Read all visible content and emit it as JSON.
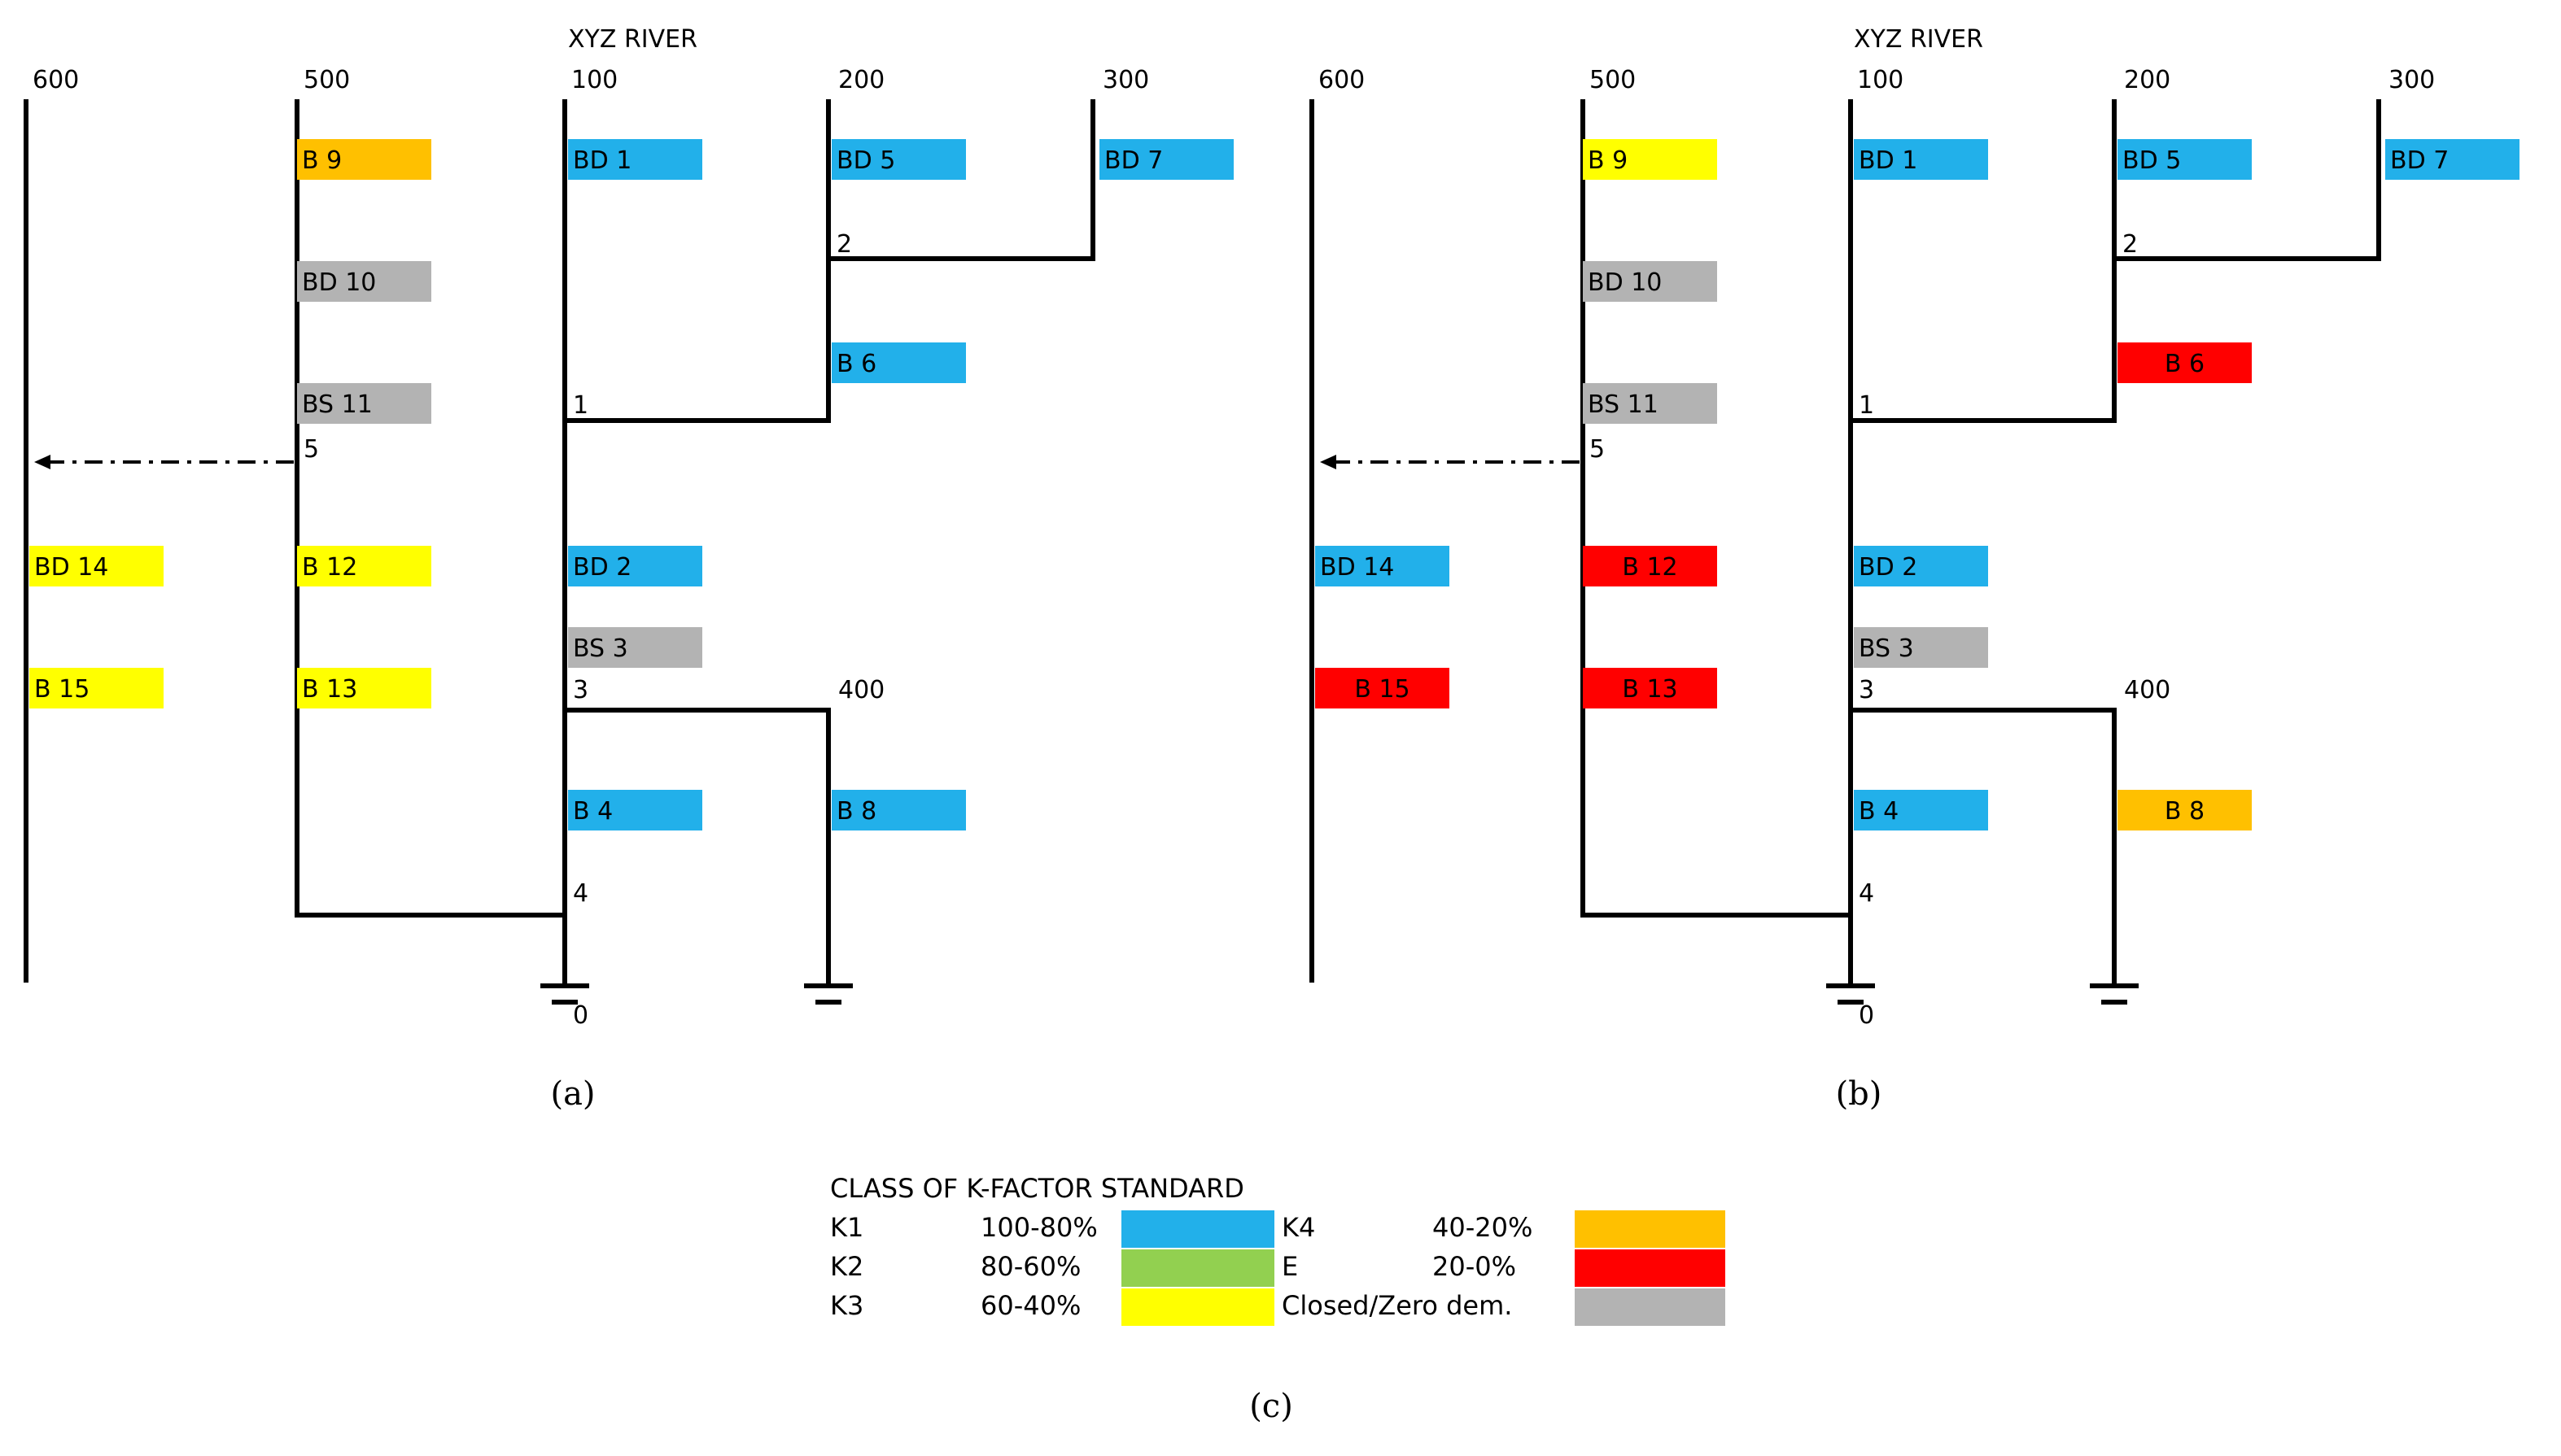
{
  "colors": {
    "K1": "#22b0ea",
    "K2": "#92d050",
    "K3": "#ffff00",
    "K4": "#ffc000",
    "E": "#ff0000",
    "closed": "#b3b3b3"
  },
  "river_label": "XYZ RIVER",
  "river_nums": [
    "600",
    "500",
    "100",
    "200",
    "300",
    "400"
  ],
  "junction_nums": [
    "2",
    "1",
    "5",
    "3",
    "4",
    "0"
  ],
  "panels": [
    {
      "caption": "(a)",
      "boxes": [
        {
          "label": "B 9",
          "class": "K4"
        },
        {
          "label": "BD 10",
          "class": "closed"
        },
        {
          "label": "BS 11",
          "class": "closed"
        },
        {
          "label": "B 12",
          "class": "K3"
        },
        {
          "label": "B 13",
          "class": "K3"
        },
        {
          "label": "BD 14",
          "class": "K3"
        },
        {
          "label": "B 15",
          "class": "K3"
        },
        {
          "label": "BD 1",
          "class": "K1"
        },
        {
          "label": "BD 2",
          "class": "K1"
        },
        {
          "label": "BS 3",
          "class": "closed"
        },
        {
          "label": "B 4",
          "class": "K1"
        },
        {
          "label": "BD 5",
          "class": "K1"
        },
        {
          "label": "B 6",
          "class": "K1"
        },
        {
          "label": "BD 7",
          "class": "K1"
        },
        {
          "label": "B 8",
          "class": "K1"
        }
      ]
    },
    {
      "caption": "(b)",
      "boxes": [
        {
          "label": "B 9",
          "class": "K3"
        },
        {
          "label": "BD 10",
          "class": "closed"
        },
        {
          "label": "BS 11",
          "class": "closed"
        },
        {
          "label": "B 12",
          "class": "E"
        },
        {
          "label": "B 13",
          "class": "E"
        },
        {
          "label": "BD 14",
          "class": "K1"
        },
        {
          "label": "B 15",
          "class": "E"
        },
        {
          "label": "BD 1",
          "class": "K1"
        },
        {
          "label": "BD 2",
          "class": "K1"
        },
        {
          "label": "BS 3",
          "class": "closed"
        },
        {
          "label": "B 4",
          "class": "K1"
        },
        {
          "label": "BD 5",
          "class": "K1"
        },
        {
          "label": "B 6",
          "class": "E"
        },
        {
          "label": "BD 7",
          "class": "K1"
        },
        {
          "label": "B 8",
          "class": "K4"
        }
      ]
    }
  ],
  "legend": {
    "title": "CLASS OF K-FACTOR STANDARD",
    "rows_left": [
      {
        "code": "K1",
        "range": "100-80%",
        "class": "K1"
      },
      {
        "code": "K2",
        "range": "80-60%",
        "class": "K2"
      },
      {
        "code": "K3",
        "range": "60-40%",
        "class": "K3"
      }
    ],
    "rows_right": [
      {
        "code": "K4",
        "range": "40-20%",
        "class": "K4"
      },
      {
        "code": "E",
        "range": "20-0%",
        "class": "E"
      },
      {
        "code": "Closed/Zero dem.",
        "range": "",
        "class": "closed"
      }
    ],
    "caption": "(c)"
  }
}
